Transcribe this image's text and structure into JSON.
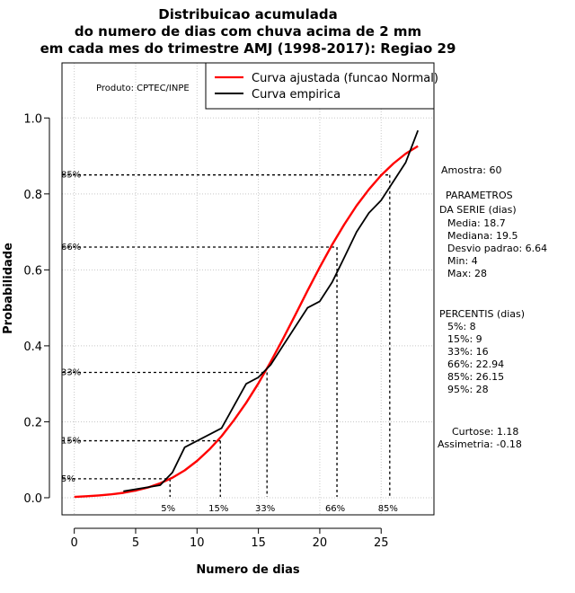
{
  "chart_data": {
    "type": "line",
    "title": [
      "Distribuicao acumulada",
      "do numero de dias com chuva acima de 2 mm",
      "em cada mes do trimestre AMJ (1998-2017): Regiao 29"
    ],
    "xlabel": "Numero de dias",
    "ylabel": "Probabilidade",
    "xlim": [
      -1,
      29.3
    ],
    "ylim": [
      -0.045,
      1.145
    ],
    "x_ticks": [
      0,
      5,
      10,
      15,
      20,
      25
    ],
    "y_ticks": [
      0.0,
      0.2,
      0.4,
      0.6,
      0.8,
      1.0
    ],
    "x_tick_labels": [
      "0",
      "5",
      "10",
      "15",
      "20",
      "25"
    ],
    "y_tick_labels": [
      "0.0",
      "0.2",
      "0.4",
      "0.6",
      "0.8",
      "1.0"
    ],
    "grid": true,
    "series": [
      {
        "name": "Curva ajustada (funcao Normal)",
        "color": "#ff0000",
        "x": [
          0,
          1,
          2,
          3,
          4,
          5,
          6,
          7,
          8,
          9,
          10,
          11,
          12,
          13,
          14,
          15,
          16,
          17,
          18,
          19,
          20,
          21,
          22,
          23,
          24,
          25,
          26,
          27,
          28
        ],
        "values": [
          0.002,
          0.004,
          0.006,
          0.009,
          0.013,
          0.019,
          0.027,
          0.038,
          0.053,
          0.072,
          0.097,
          0.127,
          0.162,
          0.204,
          0.25,
          0.301,
          0.358,
          0.418,
          0.481,
          0.545,
          0.607,
          0.666,
          0.72,
          0.769,
          0.812,
          0.849,
          0.88,
          0.906,
          0.926
        ]
      },
      {
        "name": "Curva empirica",
        "color": "#000000",
        "x": [
          4,
          7,
          8,
          9,
          12,
          14,
          15,
          16,
          17,
          18,
          19,
          20,
          21,
          22,
          23,
          24,
          25,
          26,
          27,
          28
        ],
        "values": [
          0.017,
          0.033,
          0.067,
          0.133,
          0.183,
          0.3,
          0.317,
          0.35,
          0.4,
          0.45,
          0.5,
          0.517,
          0.567,
          0.633,
          0.7,
          0.75,
          0.783,
          0.833,
          0.883,
          0.967
        ]
      }
    ],
    "percentile_guides": [
      {
        "label": "5%",
        "x": 7.8,
        "p": 0.05
      },
      {
        "label": "15%",
        "x": 11.9,
        "p": 0.15
      },
      {
        "label": "33%",
        "x": 15.7,
        "p": 0.33
      },
      {
        "label": "66%",
        "x": 21.4,
        "p": 0.66
      },
      {
        "label": "85%",
        "x": 25.7,
        "p": 0.85
      }
    ],
    "legend_position": "top-right",
    "annotations": {
      "produto": "Produto: CPTEC/INPE",
      "amostra": "Amostra: 60",
      "parametros_title": [
        "PARAMETROS",
        "DA SERIE (dias)"
      ],
      "parametros": [
        "Media: 18.7",
        "Mediana: 19.5",
        "Desvio padrao: 6.64",
        "Min: 4",
        "Max: 28"
      ],
      "percentis_title": "PERCENTIS (dias)",
      "percentis": [
        "5%: 8",
        "15%: 9",
        "33%: 16",
        "66%: 22.94",
        "85%: 26.15",
        "95%: 28"
      ],
      "curtose": "Curtose: 1.18",
      "assimetria": "Assimetria: -0.18"
    }
  }
}
